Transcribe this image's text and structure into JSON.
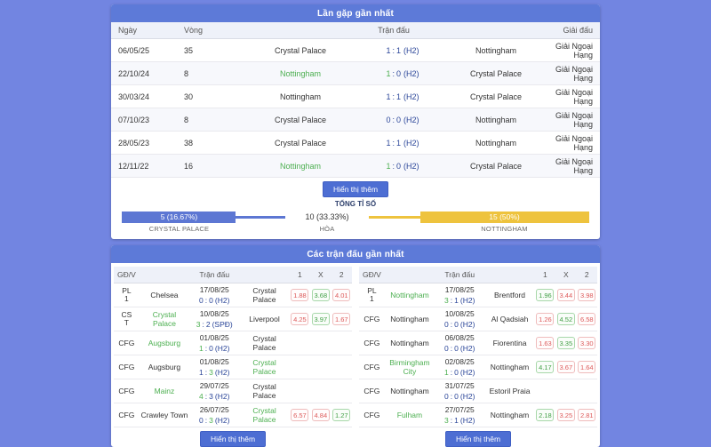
{
  "tokens": {
    "sep": ":"
  },
  "colors": {
    "page_bg": "#7285e1",
    "header_blue": "#5d7ad8",
    "button_blue": "#4d6ed3",
    "bar_home_blue": "#5d77d3",
    "bar_away_yellow": "#eec33e",
    "win_green": "#4caf50",
    "score_navy": "#2b4699",
    "odds_red": "#dd5b5b"
  },
  "h2h": {
    "title": "Lần gặp gần nhất",
    "headers": {
      "date": "Ngày",
      "round": "Vòng",
      "match": "Trận đấu",
      "league": "Giải đấu"
    },
    "rows": [
      {
        "date": "06/05/25",
        "round": "35",
        "home": "Crystal Palace",
        "s1": "1",
        "s2": "1",
        "note": "(H2)",
        "away": "Nottingham",
        "winner": "draw",
        "league": "Giải Ngoại Hạng"
      },
      {
        "date": "22/10/24",
        "round": "8",
        "home": "Nottingham",
        "s1": "1",
        "s2": "0",
        "note": "(H2)",
        "away": "Crystal Palace",
        "winner": "home",
        "league": "Giải Ngoại Hạng"
      },
      {
        "date": "30/03/24",
        "round": "30",
        "home": "Nottingham",
        "s1": "1",
        "s2": "1",
        "note": "(H2)",
        "away": "Crystal Palace",
        "winner": "draw",
        "league": "Giải Ngoại Hạng"
      },
      {
        "date": "07/10/23",
        "round": "8",
        "home": "Crystal Palace",
        "s1": "0",
        "s2": "0",
        "note": "(H2)",
        "away": "Nottingham",
        "winner": "draw",
        "league": "Giải Ngoại Hạng"
      },
      {
        "date": "28/05/23",
        "round": "38",
        "home": "Crystal Palace",
        "s1": "1",
        "s2": "1",
        "note": "(H2)",
        "away": "Nottingham",
        "winner": "draw",
        "league": "Giải Ngoại Hạng"
      },
      {
        "date": "12/11/22",
        "round": "16",
        "home": "Nottingham",
        "s1": "1",
        "s2": "0",
        "note": "(H2)",
        "away": "Crystal Palace",
        "winner": "home",
        "league": "Giải Ngoại Hạng"
      }
    ],
    "show_more": "Hiển thị thêm",
    "total_label": "TỔNG TỈ SỐ",
    "summary": {
      "home_value": "5 (16.67%)",
      "home_label": "CRYSTAL PALACE",
      "draw_value": "10 (33.33%)",
      "draw_label": "HÒA",
      "away_value": "15 (50%)",
      "away_label": "NOTTINGHAM"
    }
  },
  "recent": {
    "title": "Các trận đấu gần nhất",
    "headers": {
      "comp": "GĐ/V",
      "match": "Trận đấu",
      "one": "1",
      "draw": "X",
      "two": "2"
    },
    "show_more": "Hiển thị thêm",
    "left": {
      "rows": [
        {
          "comp1": "PL",
          "comp2": "1",
          "team1": "Chelsea",
          "date": "17/08/25",
          "s1": "0",
          "s2": "0",
          "note": "(H2)",
          "team2": "Crystal Palace",
          "winner": "draw",
          "odds": [
            {
              "v": "1.88",
              "c": "red"
            },
            {
              "v": "3.68",
              "c": "green"
            },
            {
              "v": "4.01",
              "c": "red"
            }
          ]
        },
        {
          "comp1": "CS",
          "comp2": "T",
          "team1": "Crystal Palace",
          "date": "10/08/25",
          "s1": "3",
          "s2": "2",
          "note": "(SPĐ)",
          "team2": "Liverpool",
          "winner": "team1",
          "odds": [
            {
              "v": "4.25",
              "c": "red"
            },
            {
              "v": "3.97",
              "c": "green"
            },
            {
              "v": "1.67",
              "c": "red"
            }
          ]
        },
        {
          "comp1": "CFG",
          "comp2": "",
          "team1": "Augsburg",
          "date": "01/08/25",
          "s1": "1",
          "s2": "0",
          "note": "(H2)",
          "team2": "Crystal Palace",
          "winner": "team1",
          "odds": []
        },
        {
          "comp1": "CFG",
          "comp2": "",
          "team1": "Augsburg",
          "date": "01/08/25",
          "s1": "1",
          "s2": "3",
          "note": "(H2)",
          "team2": "Crystal Palace",
          "winner": "team2",
          "odds": []
        },
        {
          "comp1": "CFG",
          "comp2": "",
          "team1": "Mainz",
          "date": "29/07/25",
          "s1": "4",
          "s2": "3",
          "note": "(H2)",
          "team2": "Crystal Palace",
          "winner": "team1",
          "odds": []
        },
        {
          "comp1": "CFG",
          "comp2": "",
          "team1": "Crawley Town",
          "date": "26/07/25",
          "s1": "0",
          "s2": "3",
          "note": "(H2)",
          "team2": "Crystal Palace",
          "winner": "team2",
          "odds": [
            {
              "v": "6.57",
              "c": "red"
            },
            {
              "v": "4.84",
              "c": "red"
            },
            {
              "v": "1.27",
              "c": "green"
            }
          ]
        }
      ]
    },
    "right": {
      "rows": [
        {
          "comp1": "PL",
          "comp2": "1",
          "team1": "Nottingham",
          "date": "17/08/25",
          "s1": "3",
          "s2": "1",
          "note": "(H2)",
          "team2": "Brentford",
          "winner": "team1",
          "odds": [
            {
              "v": "1.96",
              "c": "green"
            },
            {
              "v": "3.44",
              "c": "red"
            },
            {
              "v": "3.98",
              "c": "red"
            }
          ]
        },
        {
          "comp1": "CFG",
          "comp2": "",
          "team1": "Nottingham",
          "date": "10/08/25",
          "s1": "0",
          "s2": "0",
          "note": "(H2)",
          "team2": "Al Qadsiah",
          "winner": "draw",
          "odds": [
            {
              "v": "1.26",
              "c": "red"
            },
            {
              "v": "4.52",
              "c": "green"
            },
            {
              "v": "6.58",
              "c": "red"
            }
          ]
        },
        {
          "comp1": "CFG",
          "comp2": "",
          "team1": "Nottingham",
          "date": "06/08/25",
          "s1": "0",
          "s2": "0",
          "note": "(H2)",
          "team2": "Fiorentina",
          "winner": "draw",
          "odds": [
            {
              "v": "1.63",
              "c": "red"
            },
            {
              "v": "3.35",
              "c": "green"
            },
            {
              "v": "3.30",
              "c": "red"
            }
          ]
        },
        {
          "comp1": "CFG",
          "comp2": "",
          "team1": "Birmingham City",
          "date": "02/08/25",
          "s1": "1",
          "s2": "0",
          "note": "(H2)",
          "team2": "Nottingham",
          "winner": "team1",
          "odds": [
            {
              "v": "4.17",
              "c": "green"
            },
            {
              "v": "3.67",
              "c": "red"
            },
            {
              "v": "1.64",
              "c": "red"
            }
          ]
        },
        {
          "comp1": "CFG",
          "comp2": "",
          "team1": "Nottingham",
          "date": "31/07/25",
          "s1": "0",
          "s2": "0",
          "note": "(H2)",
          "team2": "Estoril Praia",
          "winner": "draw",
          "odds": []
        },
        {
          "comp1": "CFG",
          "comp2": "",
          "team1": "Fulham",
          "date": "27/07/25",
          "s1": "3",
          "s2": "1",
          "note": "(H2)",
          "team2": "Nottingham",
          "winner": "team1",
          "odds": [
            {
              "v": "2.18",
              "c": "green"
            },
            {
              "v": "3.25",
              "c": "red"
            },
            {
              "v": "2.81",
              "c": "red"
            }
          ]
        }
      ]
    }
  }
}
